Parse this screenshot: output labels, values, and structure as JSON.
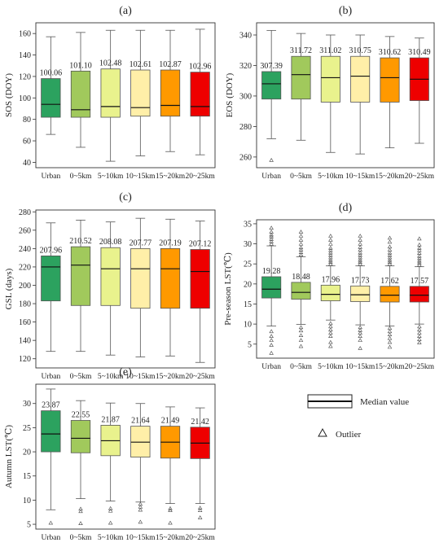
{
  "legend": {
    "median_label": "Median value",
    "outlier_label": "Outlier"
  },
  "chart_data": [
    {
      "type": "box",
      "panel": "(a)",
      "ylabel": "SOS (DOY)",
      "categories": [
        "Urban",
        "0~5km",
        "5~10km",
        "10~15km",
        "15~20km",
        "20~25km"
      ],
      "colors": [
        "#2ca25f",
        "#a1c95c",
        "#e9f28d",
        "#ffefa8",
        "#ff9900",
        "#ee0000"
      ],
      "ylim": [
        35,
        170
      ],
      "yticks": [
        40,
        60,
        80,
        100,
        120,
        140,
        160
      ],
      "means": [
        "100.06",
        "101.10",
        "102.48",
        "102.61",
        "102.87",
        "102.96"
      ],
      "boxes": [
        {
          "min": 66,
          "q1": 82,
          "median": 94,
          "q3": 118,
          "max": 157,
          "outliers": []
        },
        {
          "min": 54,
          "q1": 82,
          "median": 89,
          "q3": 125,
          "max": 161,
          "outliers": []
        },
        {
          "min": 41,
          "q1": 82,
          "median": 92,
          "q3": 127,
          "max": 163,
          "outliers": []
        },
        {
          "min": 46,
          "q1": 83,
          "median": 91,
          "q3": 126,
          "max": 163,
          "outliers": []
        },
        {
          "min": 50,
          "q1": 83,
          "median": 93,
          "q3": 126,
          "max": 163,
          "outliers": []
        },
        {
          "min": 47,
          "q1": 83,
          "median": 92,
          "q3": 124,
          "max": 164,
          "outliers": []
        }
      ]
    },
    {
      "type": "box",
      "panel": "(b)",
      "ylabel": "EOS (DOY)",
      "categories": [
        "Urban",
        "0~5km",
        "5~10km",
        "10~15km",
        "15~20km",
        "20~25km"
      ],
      "colors": [
        "#2ca25f",
        "#a1c95c",
        "#e9f28d",
        "#ffefa8",
        "#ff9900",
        "#ee0000"
      ],
      "ylim": [
        253,
        348
      ],
      "yticks": [
        260,
        280,
        300,
        320,
        340
      ],
      "means": [
        "307.39",
        "311.72",
        "311.02",
        "310.75",
        "310.62",
        "310.49"
      ],
      "boxes": [
        {
          "min": 272,
          "q1": 298,
          "median": 308,
          "q3": 316,
          "max": 343,
          "outliers": [
            258
          ]
        },
        {
          "min": 271,
          "q1": 298,
          "median": 314,
          "q3": 326,
          "max": 341,
          "outliers": []
        },
        {
          "min": 263,
          "q1": 296,
          "median": 312,
          "q3": 326,
          "max": 340,
          "outliers": []
        },
        {
          "min": 262,
          "q1": 296,
          "median": 313,
          "q3": 326,
          "max": 340,
          "outliers": []
        },
        {
          "min": 266,
          "q1": 296,
          "median": 312,
          "q3": 325,
          "max": 339,
          "outliers": []
        },
        {
          "min": 269,
          "q1": 297,
          "median": 311,
          "q3": 325,
          "max": 338,
          "outliers": []
        }
      ]
    },
    {
      "type": "box",
      "panel": "(c)",
      "ylabel": "GSL (days)",
      "categories": [
        "Urban",
        "0~5km",
        "5~10km",
        "10~15km",
        "15~20km",
        "20~25km"
      ],
      "colors": [
        "#2ca25f",
        "#a1c95c",
        "#e9f28d",
        "#ffefa8",
        "#ff9900",
        "#ee0000"
      ],
      "ylim": [
        110,
        282
      ],
      "yticks": [
        120,
        140,
        160,
        180,
        200,
        220,
        240,
        260,
        280
      ],
      "means": [
        "207.96",
        "210.52",
        "208.08",
        "207.77",
        "207.19",
        "207.12"
      ],
      "boxes": [
        {
          "min": 128,
          "q1": 183,
          "median": 220,
          "q3": 232,
          "max": 268,
          "outliers": []
        },
        {
          "min": 128,
          "q1": 178,
          "median": 222,
          "q3": 242,
          "max": 271,
          "outliers": []
        },
        {
          "min": 124,
          "q1": 178,
          "median": 218,
          "q3": 241,
          "max": 269,
          "outliers": []
        },
        {
          "min": 122,
          "q1": 175,
          "median": 218,
          "q3": 240,
          "max": 273,
          "outliers": []
        },
        {
          "min": 123,
          "q1": 175,
          "median": 218,
          "q3": 240,
          "max": 272,
          "outliers": []
        },
        {
          "min": 116,
          "q1": 175,
          "median": 215,
          "q3": 239,
          "max": 270,
          "outliers": []
        }
      ]
    },
    {
      "type": "box",
      "panel": "(d)",
      "ylabel": "Pre-season LST(℃)",
      "categories": [
        "Urban",
        "0~5km",
        "5~10km",
        "10~15km",
        "15~20km",
        "20~25km"
      ],
      "colors": [
        "#2ca25f",
        "#a1c95c",
        "#e9f28d",
        "#ffefa8",
        "#ff9900",
        "#ee0000"
      ],
      "ylim": [
        1.5,
        36
      ],
      "yticks": [
        5,
        10,
        15,
        20,
        25,
        30,
        35
      ],
      "means": [
        "19.28",
        "18.48",
        "17.96",
        "17.73",
        "17.62",
        "17.57"
      ],
      "boxes": [
        {
          "min": 9.5,
          "q1": 16.5,
          "median": 18.7,
          "q3": 21.8,
          "max": 29.5,
          "outliers": [
            30,
            30.6,
            31.2,
            31.8,
            32.3,
            33,
            34,
            8.2,
            7,
            6,
            4.8,
            2.8
          ]
        },
        {
          "min": 9.9,
          "q1": 16.2,
          "median": 17.9,
          "q3": 20.4,
          "max": 26.8,
          "outliers": [
            27.3,
            27.9,
            28.5,
            29.1,
            30,
            31,
            32,
            33,
            9.2,
            8.4,
            7.2,
            6,
            4.5
          ]
        },
        {
          "min": 11,
          "q1": 15.8,
          "median": 17.4,
          "q3": 19.7,
          "max": 24.5,
          "outliers": [
            25,
            25.5,
            26,
            26.6,
            27.2,
            27.8,
            28.4,
            29,
            30,
            31,
            32,
            10.2,
            9.4,
            8.6,
            7.8,
            7,
            5.5,
            4.5
          ]
        },
        {
          "min": 9.8,
          "q1": 15.6,
          "median": 17.3,
          "q3": 19.5,
          "max": 24.5,
          "outliers": [
            25,
            25.5,
            26,
            26.6,
            27.2,
            27.8,
            28.5,
            29.2,
            30,
            31,
            32,
            9.2,
            8.5,
            7.8,
            7,
            6,
            4
          ]
        },
        {
          "min": 9.5,
          "q1": 15.5,
          "median": 17.2,
          "q3": 19.4,
          "max": 24.5,
          "outliers": [
            25,
            25.5,
            26,
            26.6,
            27.2,
            27.8,
            28.5,
            29.3,
            30.5,
            31.5,
            9,
            8.2,
            7.4,
            6.5,
            5.5,
            4.3
          ]
        },
        {
          "min": 10,
          "q1": 15.5,
          "median": 17.2,
          "q3": 19.4,
          "max": 24.3,
          "outliers": [
            24.8,
            25.3,
            25.8,
            26.4,
            27,
            27.7,
            28.4,
            29,
            29.8,
            31.3,
            9.4,
            8.6,
            7.8,
            7,
            6.2,
            5.4
          ]
        }
      ]
    },
    {
      "type": "box",
      "panel": "(e)",
      "ylabel": "Autumn LST(℃)",
      "categories": [
        "Urban",
        "0~5km",
        "5~10km",
        "10~15km",
        "15~20km",
        "20~25km"
      ],
      "colors": [
        "#2ca25f",
        "#a1c95c",
        "#e9f28d",
        "#ffefa8",
        "#ff9900",
        "#ee0000"
      ],
      "ylim": [
        4,
        34
      ],
      "yticks": [
        5,
        10,
        15,
        20,
        25,
        30
      ],
      "means": [
        "23.87",
        "22.55",
        "21.87",
        "21.64",
        "21.49",
        "21.42"
      ],
      "boxes": [
        {
          "min": 8,
          "q1": 20,
          "median": 23.7,
          "q3": 28.5,
          "max": 33,
          "outliers": [
            5.3
          ]
        },
        {
          "min": 10.3,
          "q1": 19.8,
          "median": 22.8,
          "q3": 26.5,
          "max": 30.6,
          "outliers": [
            8.2,
            7.7,
            5.2
          ]
        },
        {
          "min": 9.8,
          "q1": 19.2,
          "median": 22.3,
          "q3": 25.5,
          "max": 30.1,
          "outliers": [
            8.3,
            7.8,
            5.3
          ]
        },
        {
          "min": 9.6,
          "q1": 18.9,
          "median": 22,
          "q3": 25.3,
          "max": 30,
          "outliers": [
            9.2,
            8.6,
            8,
            5.5
          ]
        },
        {
          "min": 9.3,
          "q1": 18.7,
          "median": 22,
          "q3": 25.3,
          "max": 29.3,
          "outliers": [
            8.3,
            7.9,
            5.3
          ]
        },
        {
          "min": 9.3,
          "q1": 18.6,
          "median": 21.8,
          "q3": 25.1,
          "max": 29.1,
          "outliers": [
            8.4,
            7.9,
            6.4
          ]
        }
      ]
    }
  ]
}
